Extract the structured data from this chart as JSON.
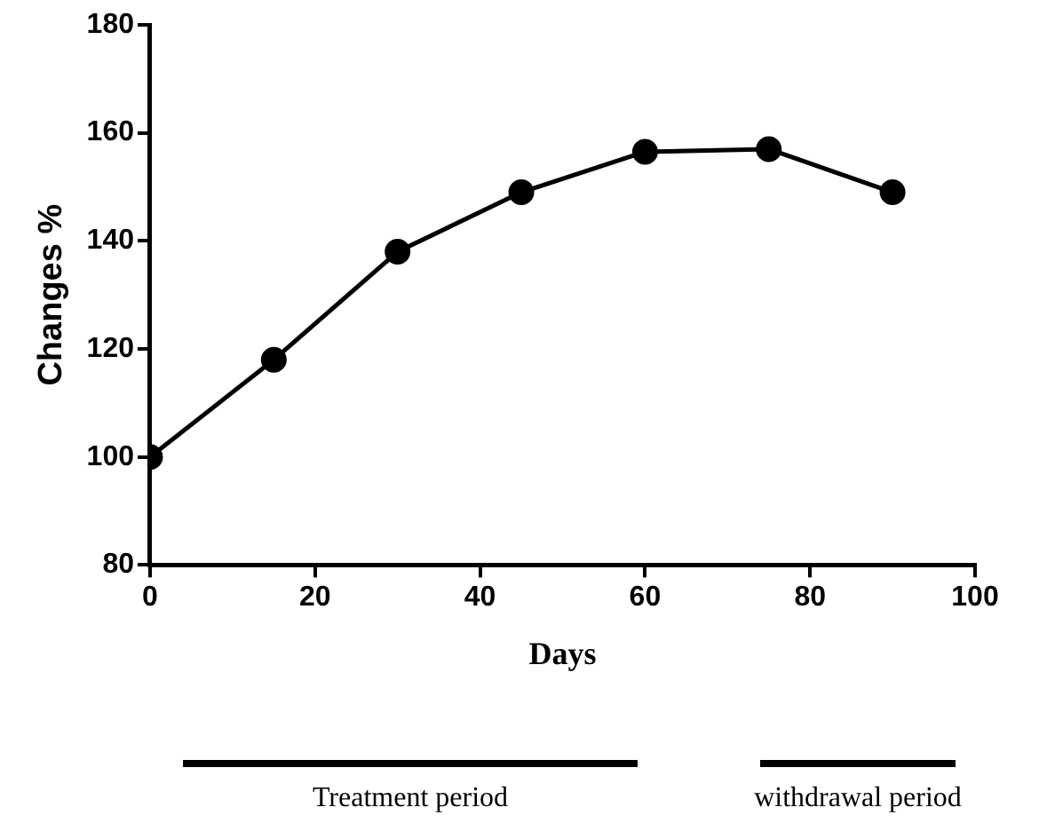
{
  "chart_data": {
    "type": "line",
    "xlabel": "Days",
    "ylabel": "Changes %",
    "x": [
      0,
      15,
      30,
      45,
      60,
      75,
      90
    ],
    "series": [
      {
        "color": "#000000",
        "values": [
          100,
          118,
          138,
          149,
          156.5,
          157,
          149
        ]
      }
    ],
    "xlim": [
      0,
      100
    ],
    "xticks": [
      0,
      20,
      40,
      60,
      80,
      100
    ],
    "ylim": [
      80,
      180
    ],
    "yticks": [
      80,
      100,
      120,
      140,
      160,
      180
    ],
    "marker": "circle",
    "line_style": "solid",
    "legend": false,
    "annotations": [
      "Treatment period",
      "withdrawal period"
    ]
  }
}
